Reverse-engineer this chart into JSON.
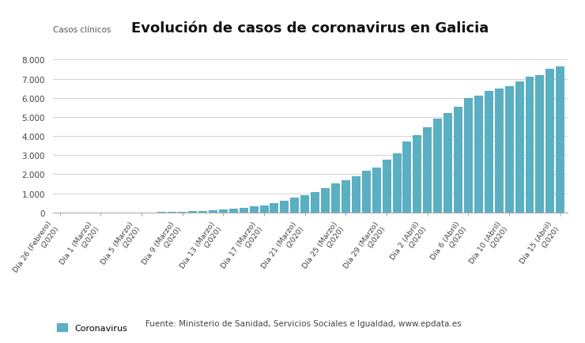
{
  "title": "Evolución de casos de coronavirus en Galicia",
  "ylabel": "Casos clínicos",
  "bar_color": "#5aafc3",
  "background_color": "#ffffff",
  "legend_label": "Coronavirus",
  "source_text": "Fuente: Ministerio de Sanidad, Servicios Sociales e Igualdad, www.epdata.es",
  "bar_values": [
    0,
    0,
    0,
    0,
    0,
    0,
    0,
    0,
    0,
    3,
    10,
    15,
    35,
    60,
    90,
    120,
    150,
    200,
    250,
    300,
    350,
    480,
    600,
    780,
    900,
    1050,
    1250,
    1500,
    1700,
    1900,
    2200,
    2350,
    2750,
    3100,
    3700,
    4050,
    4450,
    4900,
    5200,
    5550,
    6000,
    6100,
    6350,
    6500,
    6600,
    6850,
    7100,
    7200,
    7500,
    7650
  ],
  "tick_positions": [
    0,
    4,
    8,
    12,
    16,
    20,
    24,
    28,
    32,
    36,
    40,
    44,
    49
  ],
  "tick_labels": [
    "Día 26 (Febrero)\n(2020)",
    "Día 1 (Marzo)\n(2020)",
    "Día 5 (Marzo)\n(2020)",
    "Día 9 (Marzo)\n(2020)",
    "Día 13 (Marzo)\n(2020)",
    "Día 17 (Marzo)\n(2020)",
    "Día 21 (Marzo)\n(2020)",
    "Día 25 (Marzo)\n(2020)",
    "Día 29 (Marzo)\n(2020)",
    "Día 2 (Abril)\n(2020)",
    "Día 6 (Abril)\n(2020)",
    "Día 10 (Abril)\n(2020)",
    "Día 15 (Abril)\n(2020)"
  ],
  "ylim": [
    0,
    9000
  ],
  "yticks": [
    0,
    1000,
    2000,
    3000,
    4000,
    5000,
    6000,
    7000,
    8000
  ],
  "ytick_labels": [
    "0",
    "1.000",
    "2.000",
    "3.000",
    "4.000",
    "5.000",
    "6.000",
    "7.000",
    "8.000"
  ]
}
